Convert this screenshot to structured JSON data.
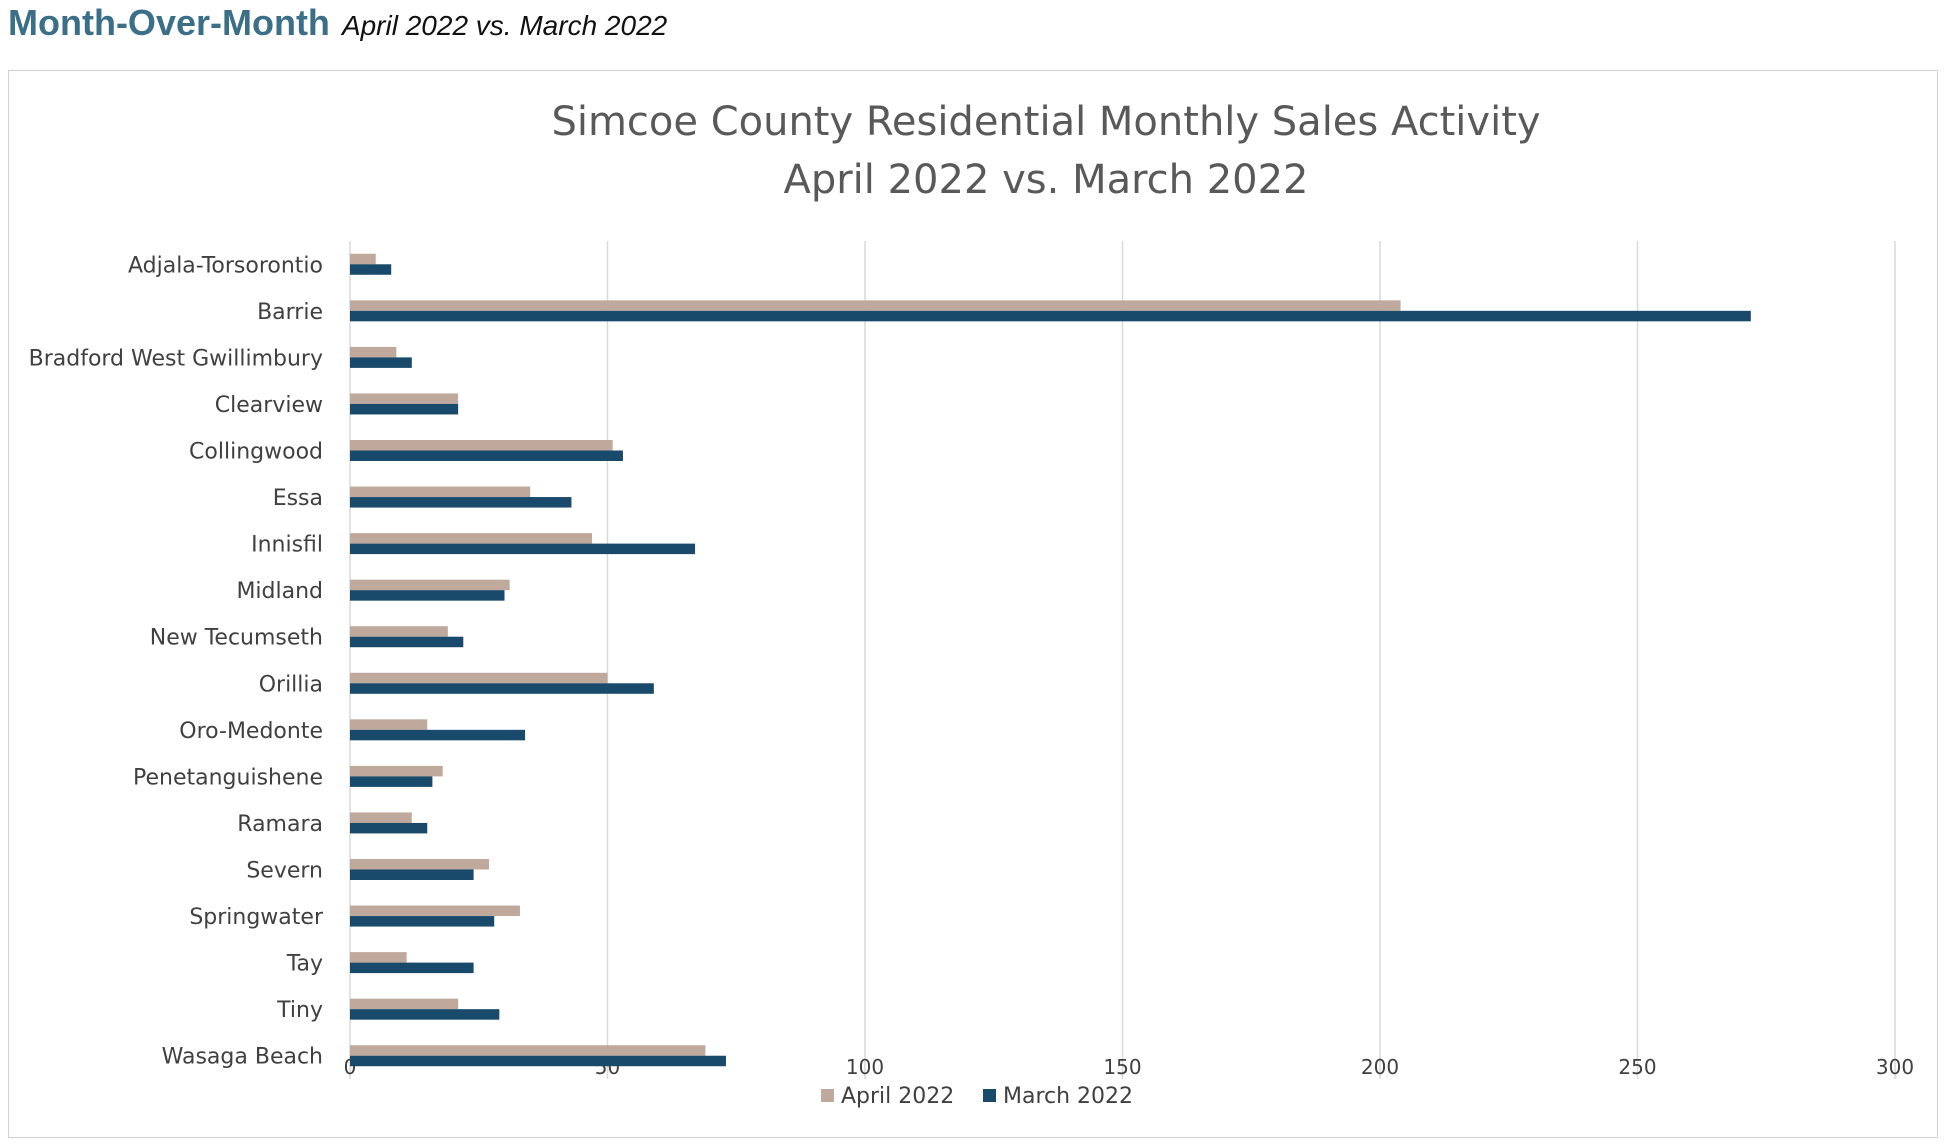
{
  "header": {
    "title": "Month-Over-Month",
    "subtitle": "April 2022 vs. March 2022"
  },
  "colors": {
    "header_title": "#3b6f88",
    "april": "#bfa89c",
    "march": "#1a4a6b",
    "grid": "#d9d9d9",
    "text": "#404040",
    "chart_title": "#595959"
  },
  "chart_data": {
    "type": "bar",
    "orientation": "horizontal",
    "title": [
      "Simcoe County Residential Monthly Sales Activity",
      "April 2022 vs. March 2022"
    ],
    "categories": [
      "Adjala-Torsorontio",
      "Barrie",
      "Bradford West Gwillimbury",
      "Clearview",
      "Collingwood",
      "Essa",
      "Innisfil",
      "Midland",
      "New Tecumseth",
      "Orillia",
      "Oro-Medonte",
      "Penetanguishene",
      "Ramara",
      "Severn",
      "Springwater",
      "Tay",
      "Tiny",
      "Wasaga Beach"
    ],
    "series": [
      {
        "name": "April 2022",
        "values": [
          5,
          204,
          9,
          21,
          51,
          35,
          47,
          31,
          19,
          50,
          15,
          18,
          12,
          27,
          33,
          11,
          21,
          69
        ]
      },
      {
        "name": "March 2022",
        "values": [
          8,
          272,
          12,
          21,
          53,
          43,
          67,
          30,
          22,
          59,
          34,
          16,
          15,
          24,
          28,
          24,
          29,
          73
        ]
      }
    ],
    "xlim": [
      0,
      300
    ],
    "xticks": [
      "0",
      "50",
      "100",
      "150",
      "200",
      "250",
      "300"
    ],
    "grid": true,
    "legend_position": "bottom"
  }
}
